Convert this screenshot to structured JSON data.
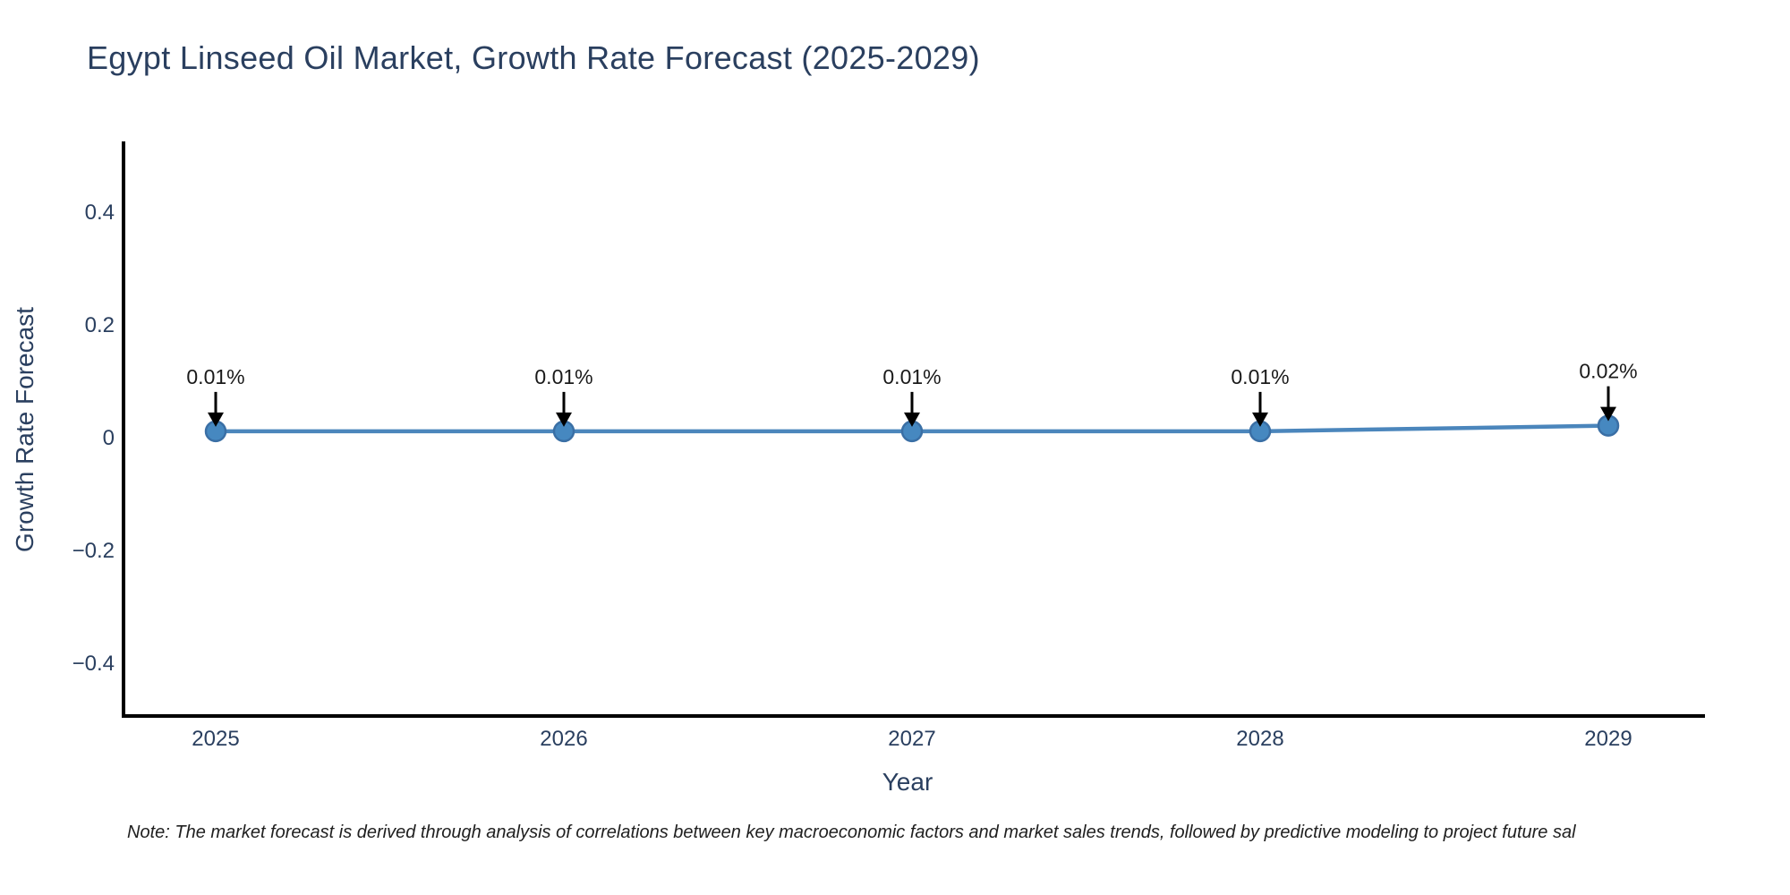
{
  "title": "Egypt Linseed Oil Market, Growth Rate Forecast (2025-2029)",
  "footnote": "Note: The market forecast is derived through analysis of correlations between key macroeconomic factors and market sales trends, followed by predictive modeling to project future sal",
  "chart_data": {
    "type": "line",
    "title": "Egypt Linseed Oil Market, Growth Rate Forecast (2025-2029)",
    "xlabel": "Year",
    "ylabel": "Growth Rate Forecast",
    "x": [
      2025,
      2026,
      2027,
      2028,
      2029
    ],
    "xtick_labels": [
      "2025",
      "2026",
      "2027",
      "2028",
      "2029"
    ],
    "values": [
      0.01,
      0.01,
      0.01,
      0.01,
      0.02
    ],
    "point_labels": [
      "0.01%",
      "0.01%",
      "0.01%",
      "0.01%",
      "0.02%"
    ],
    "yticks": [
      0.4,
      0.2,
      0,
      -0.2,
      -0.4
    ],
    "ytick_labels": [
      "0.4",
      "0.2",
      "0",
      "−0.2",
      "−0.4"
    ],
    "ylim": [
      -0.495,
      0.521
    ],
    "grid": false,
    "legend": "none",
    "markers": true,
    "annotation_arrows": true,
    "colors": {
      "line": "#4b86bc",
      "marker_fill": "#4688c0",
      "marker_edge": "#3a6fa5",
      "axis_line": "#000000",
      "tick_text": "#2a3f5f",
      "title_text": "#2a3f5f",
      "annotation_text": "#1a1a1a",
      "arrow": "#000000",
      "background": "#ffffff"
    }
  }
}
